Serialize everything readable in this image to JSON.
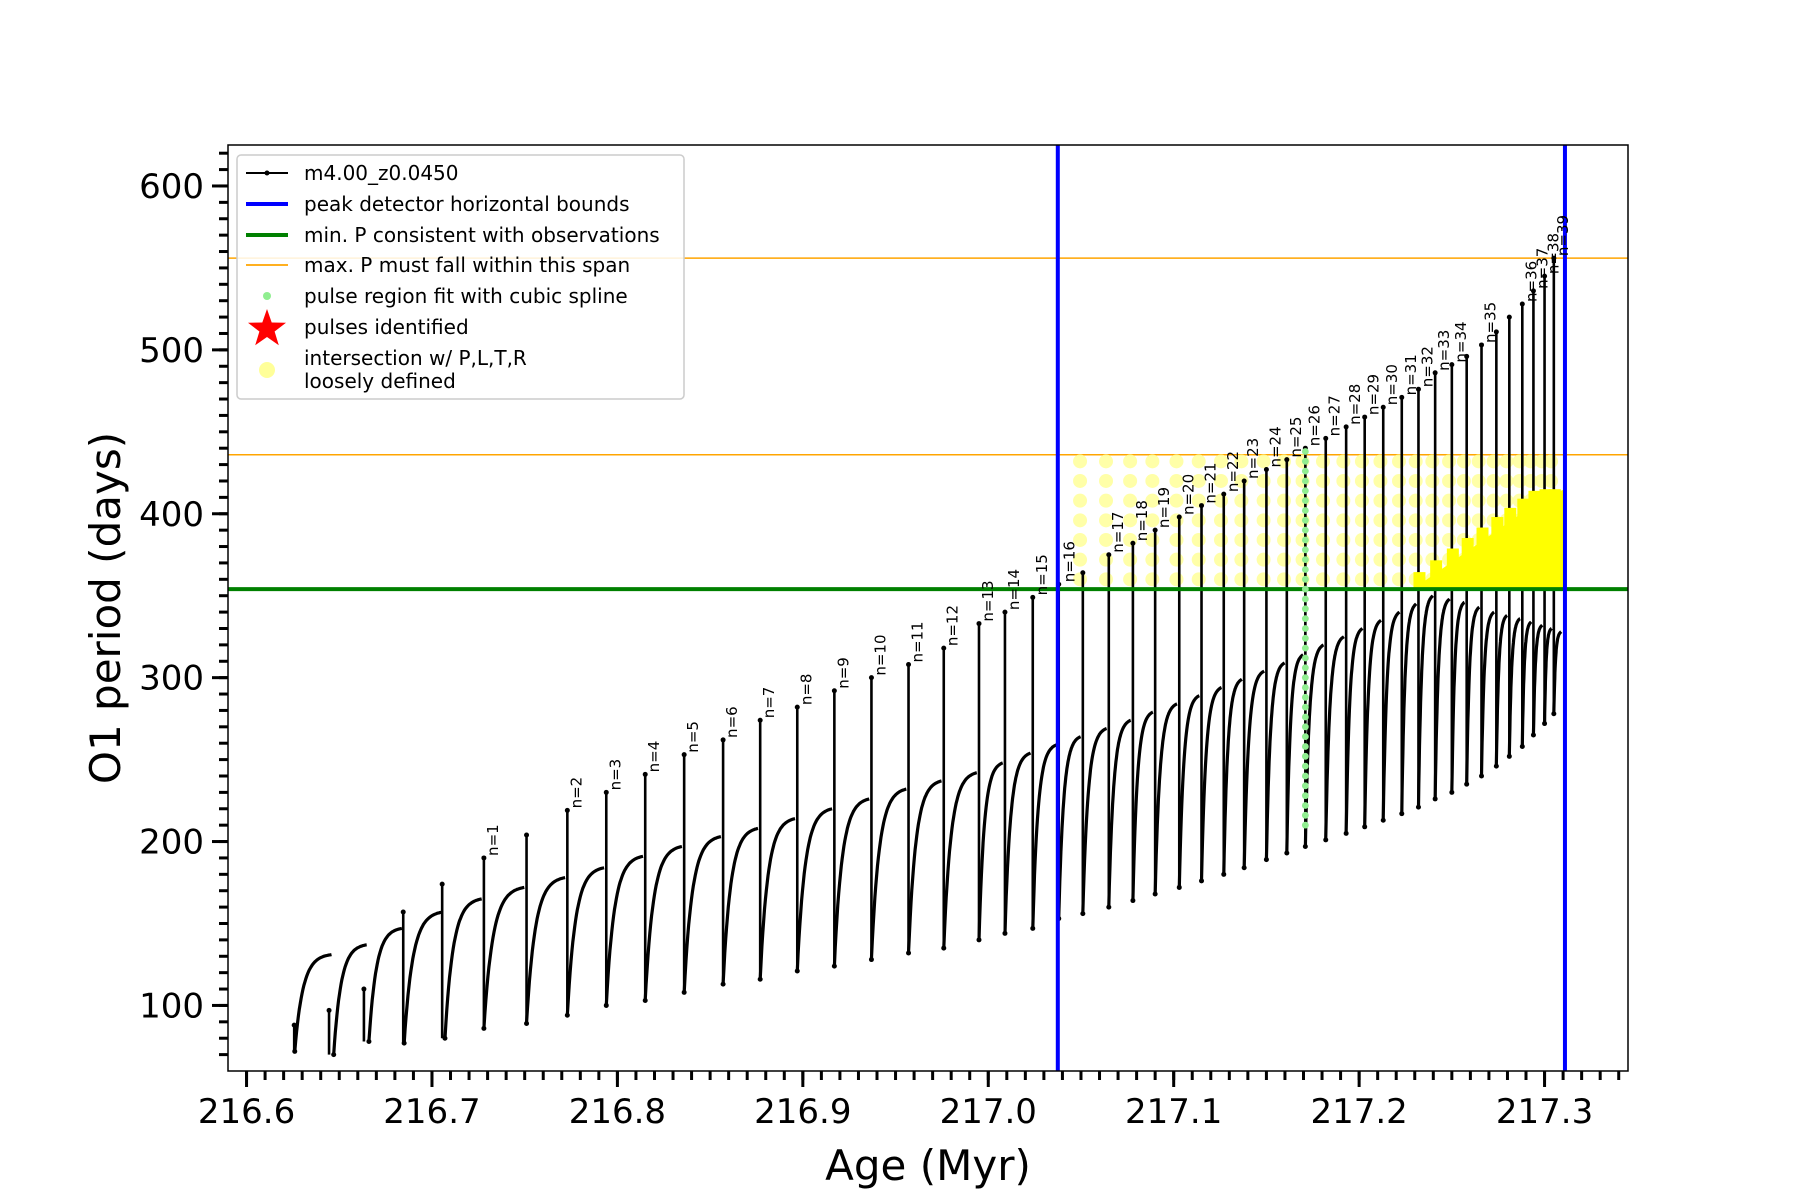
{
  "chart_data": {
    "type": "line",
    "xlabel": "Age (Myr)",
    "ylabel": "O1 period (days)",
    "xlim": [
      216.59,
      217.345
    ],
    "ylim": [
      60,
      625
    ],
    "xticks": [
      216.6,
      216.7,
      216.8,
      216.9,
      217.0,
      217.1,
      217.2,
      217.3
    ],
    "xtick_labels": [
      "216.6",
      "216.7",
      "216.8",
      "216.9",
      "217.0",
      "217.1",
      "217.2",
      "217.3"
    ],
    "yticks": [
      100,
      200,
      300,
      400,
      500,
      600
    ],
    "ytick_labels": [
      "100",
      "200",
      "300",
      "400",
      "500",
      "600"
    ],
    "x_minor_step": 0.01,
    "y_minor_step": 10,
    "series": [
      {
        "name": "m4.00_z0.0450",
        "color": "#000000",
        "marker": "dot",
        "pulses": [
          {
            "start": 216.626,
            "min": 72,
            "max": 131
          },
          {
            "start": 216.647,
            "min": 70,
            "max": 137
          },
          {
            "start": 216.666,
            "min": 78,
            "max": 147
          },
          {
            "start": 216.685,
            "min": 77,
            "max": 157
          },
          {
            "start": 216.707,
            "min": 80,
            "max": 165
          },
          {
            "start": 216.728,
            "min": 86,
            "max": 172
          },
          {
            "start": 216.751,
            "min": 89,
            "max": 178
          },
          {
            "start": 216.773,
            "min": 94,
            "max": 184
          },
          {
            "start": 216.794,
            "min": 100,
            "max": 191
          },
          {
            "start": 216.815,
            "min": 103,
            "max": 197
          },
          {
            "start": 216.836,
            "min": 108,
            "max": 203
          },
          {
            "start": 216.857,
            "min": 113,
            "max": 208
          },
          {
            "start": 216.877,
            "min": 116,
            "max": 214
          },
          {
            "start": 216.897,
            "min": 121,
            "max": 220
          },
          {
            "start": 216.917,
            "min": 124,
            "max": 226
          },
          {
            "start": 216.937,
            "min": 128,
            "max": 232
          },
          {
            "start": 216.957,
            "min": 132,
            "max": 237
          },
          {
            "start": 216.976,
            "min": 135,
            "max": 242
          },
          {
            "start": 216.995,
            "min": 140,
            "max": 248
          },
          {
            "start": 217.009,
            "min": 144,
            "max": 254
          },
          {
            "start": 217.024,
            "min": 147,
            "max": 259
          },
          {
            "start": 217.038,
            "min": 153,
            "max": 264
          },
          {
            "start": 217.051,
            "min": 156,
            "max": 269
          },
          {
            "start": 217.065,
            "min": 160,
            "max": 274
          },
          {
            "start": 217.078,
            "min": 164,
            "max": 279
          },
          {
            "start": 217.09,
            "min": 168,
            "max": 284
          },
          {
            "start": 217.103,
            "min": 172,
            "max": 289
          },
          {
            "start": 217.115,
            "min": 176,
            "max": 294
          },
          {
            "start": 217.127,
            "min": 180,
            "max": 299
          },
          {
            "start": 217.138,
            "min": 184,
            "max": 304
          },
          {
            "start": 217.15,
            "min": 189,
            "max": 309
          },
          {
            "start": 217.161,
            "min": 193,
            "max": 314
          },
          {
            "start": 217.171,
            "min": 197,
            "max": 320
          },
          {
            "start": 217.182,
            "min": 201,
            "max": 325
          },
          {
            "start": 217.193,
            "min": 205,
            "max": 330
          },
          {
            "start": 217.203,
            "min": 209,
            "max": 335
          },
          {
            "start": 217.213,
            "min": 213,
            "max": 340
          },
          {
            "start": 217.223,
            "min": 217,
            "max": 345
          },
          {
            "start": 217.232,
            "min": 221,
            "max": 350
          },
          {
            "start": 217.241,
            "min": 226,
            "max": 348
          },
          {
            "start": 217.25,
            "min": 230,
            "max": 346
          },
          {
            "start": 217.258,
            "min": 235,
            "max": 343
          },
          {
            "start": 217.266,
            "min": 240,
            "max": 340
          },
          {
            "start": 217.274,
            "min": 246,
            "max": 338
          },
          {
            "start": 217.281,
            "min": 252,
            "max": 336
          },
          {
            "start": 217.288,
            "min": 258,
            "max": 334
          },
          {
            "start": 217.294,
            "min": 265,
            "max": 332
          },
          {
            "start": 217.3,
            "min": 272,
            "max": 330
          },
          {
            "start": 217.305,
            "min": 278,
            "max": 328
          }
        ],
        "spikes": [
          {
            "x": 216.6257,
            "top": 88
          },
          {
            "x": 216.6445,
            "top": 97
          },
          {
            "x": 216.6633,
            "top": 110
          },
          {
            "x": 216.6845,
            "top": 157
          },
          {
            "x": 216.7055,
            "top": 174
          },
          {
            "x": 216.728,
            "top": 190
          },
          {
            "x": 216.751,
            "top": 204
          },
          {
            "x": 216.773,
            "top": 219
          },
          {
            "x": 216.794,
            "top": 230
          },
          {
            "x": 216.815,
            "top": 241
          },
          {
            "x": 216.836,
            "top": 253
          },
          {
            "x": 216.857,
            "top": 262
          },
          {
            "x": 216.877,
            "top": 274
          },
          {
            "x": 216.897,
            "top": 282
          },
          {
            "x": 216.917,
            "top": 292
          },
          {
            "x": 216.937,
            "top": 300
          },
          {
            "x": 216.957,
            "top": 308
          },
          {
            "x": 216.976,
            "top": 318
          },
          {
            "x": 216.995,
            "top": 333
          },
          {
            "x": 217.009,
            "top": 340
          },
          {
            "x": 217.024,
            "top": 349
          },
          {
            "x": 217.038,
            "top": 357
          },
          {
            "x": 217.051,
            "top": 364
          },
          {
            "x": 217.065,
            "top": 375
          },
          {
            "x": 217.078,
            "top": 382
          },
          {
            "x": 217.09,
            "top": 390
          },
          {
            "x": 217.103,
            "top": 398
          },
          {
            "x": 217.115,
            "top": 405
          },
          {
            "x": 217.127,
            "top": 412
          },
          {
            "x": 217.138,
            "top": 420
          },
          {
            "x": 217.15,
            "top": 427
          },
          {
            "x": 217.161,
            "top": 433
          },
          {
            "x": 217.171,
            "top": 440
          },
          {
            "x": 217.182,
            "top": 446
          },
          {
            "x": 217.193,
            "top": 453
          },
          {
            "x": 217.203,
            "top": 459
          },
          {
            "x": 217.213,
            "top": 465
          },
          {
            "x": 217.223,
            "top": 471
          },
          {
            "x": 217.232,
            "top": 476
          },
          {
            "x": 217.241,
            "top": 486
          },
          {
            "x": 217.25,
            "top": 491
          },
          {
            "x": 217.258,
            "top": 496
          },
          {
            "x": 217.266,
            "top": 503
          },
          {
            "x": 217.274,
            "top": 511
          },
          {
            "x": 217.281,
            "top": 520
          },
          {
            "x": 217.288,
            "top": 528
          },
          {
            "x": 217.294,
            "top": 536
          },
          {
            "x": 217.3,
            "top": 545
          },
          {
            "x": 217.305,
            "top": 556
          }
        ]
      },
      {
        "name": "peak detector horizontal bounds",
        "type": "vline",
        "color": "#0000ff",
        "x": [
          217.0375,
          217.311
        ]
      },
      {
        "name": "min. P consistent with observations",
        "type": "hline",
        "color": "#008000",
        "y": 354
      },
      {
        "name": "max. P must fall within this span",
        "type": "hline",
        "color": "#ffa500",
        "y": [
          436,
          556
        ]
      },
      {
        "name": "pulse region fit with cubic spline",
        "type": "scatter",
        "color": "#90ee90",
        "x": 217.171,
        "y_range": [
          210,
          440
        ]
      },
      {
        "name": "pulses identified",
        "type": "scatter",
        "color": "#ff0000",
        "marker": "star"
      },
      {
        "name": "intersection w/ P,L,T,R\nloosely defined",
        "type": "scatter",
        "color": "#ffff00",
        "light_color": "#ffff99",
        "marker": "circle"
      }
    ],
    "pulse_labels": [
      {
        "text": "n=1",
        "x": 216.728,
        "y": 190
      },
      {
        "text": "n=2",
        "x": 216.773,
        "y": 219
      },
      {
        "text": "n=3",
        "x": 216.794,
        "y": 230
      },
      {
        "text": "n=4",
        "x": 216.815,
        "y": 241
      },
      {
        "text": "n=5",
        "x": 216.836,
        "y": 253
      },
      {
        "text": "n=6",
        "x": 216.857,
        "y": 262
      },
      {
        "text": "n=7",
        "x": 216.877,
        "y": 274
      },
      {
        "text": "n=8",
        "x": 216.897,
        "y": 282
      },
      {
        "text": "n=9",
        "x": 216.917,
        "y": 292
      },
      {
        "text": "n=10",
        "x": 216.937,
        "y": 300
      },
      {
        "text": "n=11",
        "x": 216.957,
        "y": 308
      },
      {
        "text": "n=12",
        "x": 216.976,
        "y": 318
      },
      {
        "text": "n=13",
        "x": 216.995,
        "y": 333
      },
      {
        "text": "n=14",
        "x": 217.009,
        "y": 340
      },
      {
        "text": "n=15",
        "x": 217.024,
        "y": 349
      },
      {
        "text": "n=16",
        "x": 217.039,
        "y": 357
      },
      {
        "text": "n=17",
        "x": 217.065,
        "y": 375
      },
      {
        "text": "n=18",
        "x": 217.078,
        "y": 382
      },
      {
        "text": "n=19",
        "x": 217.09,
        "y": 390
      },
      {
        "text": "n=20",
        "x": 217.103,
        "y": 398
      },
      {
        "text": "n=21",
        "x": 217.115,
        "y": 405
      },
      {
        "text": "n=22",
        "x": 217.127,
        "y": 412
      },
      {
        "text": "n=23",
        "x": 217.138,
        "y": 420
      },
      {
        "text": "n=24",
        "x": 217.15,
        "y": 427
      },
      {
        "text": "n=25",
        "x": 217.161,
        "y": 433
      },
      {
        "text": "n=26",
        "x": 217.171,
        "y": 440
      },
      {
        "text": "n=27",
        "x": 217.182,
        "y": 446
      },
      {
        "text": "n=28",
        "x": 217.193,
        "y": 453
      },
      {
        "text": "n=29",
        "x": 217.203,
        "y": 459
      },
      {
        "text": "n=30",
        "x": 217.213,
        "y": 465
      },
      {
        "text": "n=31",
        "x": 217.223,
        "y": 471
      },
      {
        "text": "n=32",
        "x": 217.232,
        "y": 476
      },
      {
        "text": "n=33",
        "x": 217.241,
        "y": 486
      },
      {
        "text": "n=34",
        "x": 217.25,
        "y": 491
      },
      {
        "text": "n=35",
        "x": 217.266,
        "y": 503
      },
      {
        "text": "n=36",
        "x": 217.288,
        "y": 528
      },
      {
        "text": "n=37",
        "x": 217.294,
        "y": 536
      },
      {
        "text": "n=38",
        "x": 217.3,
        "y": 545
      },
      {
        "text": "n=39",
        "x": 217.305,
        "y": 556
      }
    ],
    "legend": {
      "position": "top-left",
      "entries": [
        {
          "label": "m4.00_z0.0450",
          "symbol": "line-dot",
          "color": "#000000"
        },
        {
          "label": "peak detector horizontal bounds",
          "symbol": "line",
          "color": "#0000ff"
        },
        {
          "label": "min. P consistent with observations",
          "symbol": "line",
          "color": "#008000"
        },
        {
          "label": "max. P must fall within this span",
          "symbol": "thin-line",
          "color": "#ffa500"
        },
        {
          "label": "pulse region fit with cubic spline",
          "symbol": "dot",
          "color": "#90ee90"
        },
        {
          "label": "pulses identified",
          "symbol": "star",
          "color": "#ff0000"
        },
        {
          "label": "intersection w/ P,L,T,R",
          "label2": "loosely defined",
          "symbol": "circle",
          "color": "#ffff99"
        }
      ]
    },
    "grid": false
  }
}
